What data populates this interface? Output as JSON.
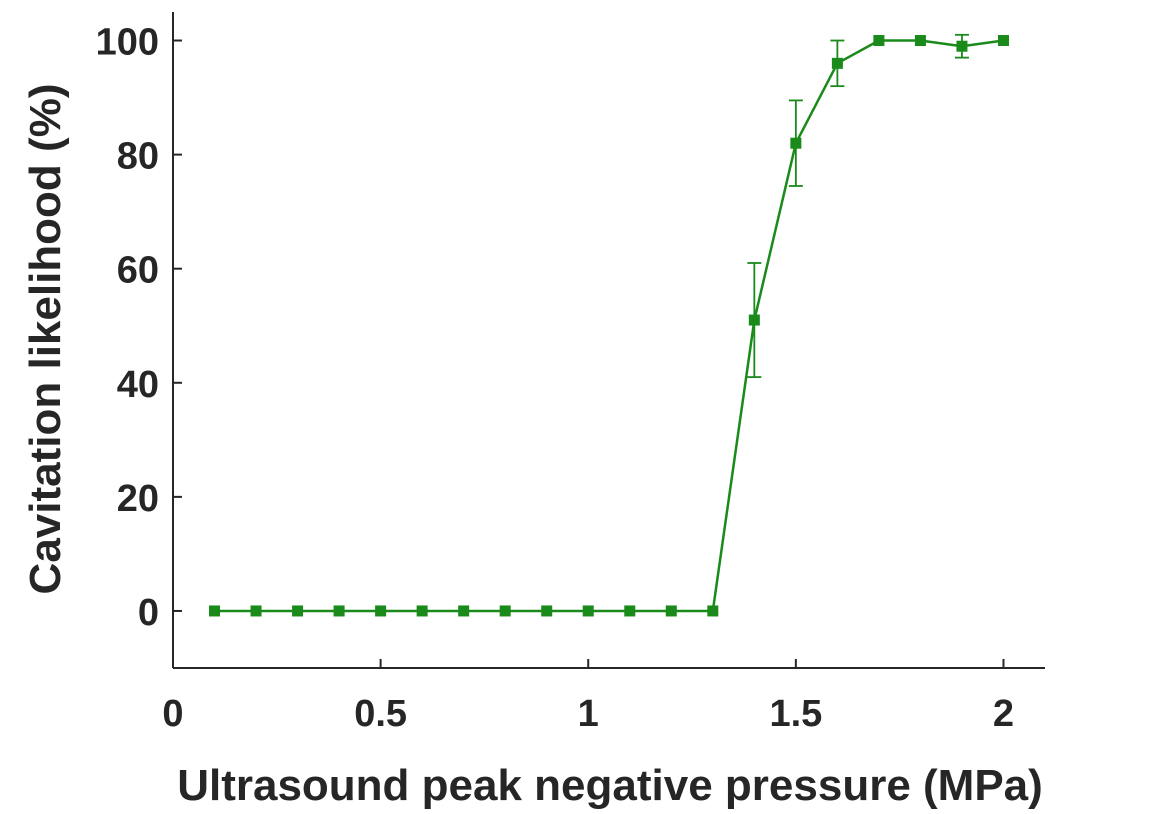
{
  "chart_data": {
    "type": "line",
    "title": "",
    "xlabel": "Ultrasound peak negative pressure (MPa)",
    "ylabel": "Cavitation likelihood (%)",
    "xlim": [
      0,
      2.1
    ],
    "ylim": [
      -10,
      105
    ],
    "xticks": [
      0,
      0.5,
      1,
      1.5,
      2
    ],
    "xtick_labels": [
      "0",
      "0.5",
      "1",
      "1.5",
      "2"
    ],
    "yticks": [
      0,
      20,
      40,
      60,
      80,
      100
    ],
    "ytick_labels": [
      "0",
      "20",
      "40",
      "60",
      "80",
      "100"
    ],
    "grid": false,
    "legend": "none",
    "series": [
      {
        "color": "#1a8a1a",
        "x": [
          0.1,
          0.2,
          0.3,
          0.4,
          0.5,
          0.6,
          0.7,
          0.8,
          0.9,
          1.0,
          1.1,
          1.2,
          1.3,
          1.4,
          1.5,
          1.6,
          1.7,
          1.8,
          1.9,
          2.0
        ],
        "y": [
          0,
          0,
          0,
          0,
          0,
          0,
          0,
          0,
          0,
          0,
          0,
          0,
          0,
          51,
          82,
          96,
          100,
          100,
          99,
          100
        ],
        "error": [
          0,
          0,
          0,
          0,
          0,
          0,
          0,
          0,
          0,
          0,
          0,
          0,
          0,
          10,
          7.5,
          4,
          0,
          0,
          2,
          0
        ]
      }
    ]
  }
}
